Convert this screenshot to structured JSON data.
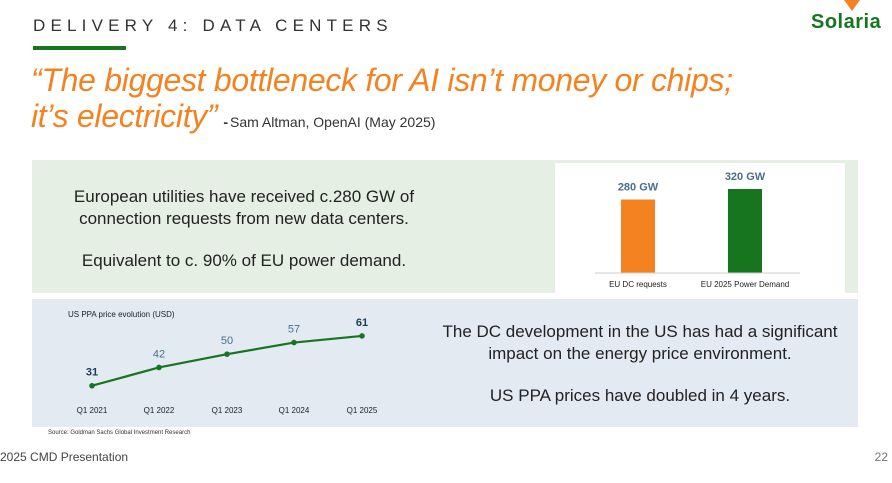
{
  "header": {
    "title": "DELIVERY 4: DATA CENTERS",
    "logo_text": "Solaria"
  },
  "quote": {
    "line1": "“The biggest bottleneck for AI isn’t money or chips;",
    "line2": "it’s electricity”",
    "attribution_dash": "-",
    "attribution": "Sam Altman, OpenAI (May 2025)"
  },
  "eu_panel": {
    "text_lines": [
      "European utilities have received c.280 GW of",
      "connection requests from new data centers."
    ],
    "text_line3": "Equivalent to c. 90% of EU power demand."
  },
  "us_panel": {
    "text_lines": [
      "The DC development in the US has had a significant",
      "impact on the energy price environment."
    ],
    "text_line3": "US PPA prices have doubled in 4 years."
  },
  "source": "Source: Goldman Sachs Global Investment Research",
  "footer": {
    "left": "2025 CMD Presentation",
    "page_number": "22"
  },
  "colors": {
    "accent_orange": "#f58220",
    "brand_green": "#17751f",
    "line_green": "#17751f"
  },
  "chart_data": [
    {
      "type": "bar",
      "categories": [
        "EU DC requests",
        "EU 2025 Power Demand"
      ],
      "values": [
        280,
        320
      ],
      "data_labels": [
        "280 GW",
        "320 GW"
      ],
      "colors": [
        "#f58220",
        "#17751f"
      ],
      "title": "",
      "xlabel": "",
      "ylabel": "",
      "ylim": [
        0,
        340
      ],
      "grid": false
    },
    {
      "type": "line",
      "categories": [
        "Q1 2021",
        "Q1 2022",
        "Q1 2023",
        "Q1 2024",
        "Q1 2025"
      ],
      "series": [
        {
          "values": [
            31,
            42,
            50,
            57,
            61
          ]
        }
      ],
      "data_labels": [
        "31",
        "42",
        "50",
        "57",
        "61"
      ],
      "title": "US PPA price evolution (USD)",
      "xlabel": "",
      "ylabel": "",
      "ylim": [
        20,
        70
      ],
      "grid": false
    }
  ]
}
